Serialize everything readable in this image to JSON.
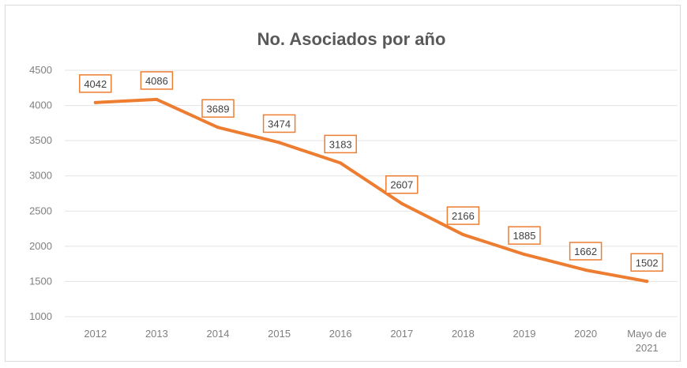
{
  "chart_data": {
    "type": "line",
    "title": "No. Asociados por año",
    "categories": [
      "2012",
      "2013",
      "2014",
      "2015",
      "2016",
      "2017",
      "2018",
      "2019",
      "2020",
      "Mayo de 2021"
    ],
    "category_lines": [
      [
        "2012"
      ],
      [
        "2013"
      ],
      [
        "2014"
      ],
      [
        "2015"
      ],
      [
        "2016"
      ],
      [
        "2017"
      ],
      [
        "2018"
      ],
      [
        "2019"
      ],
      [
        "2020"
      ],
      [
        "Mayo de",
        "2021"
      ]
    ],
    "series": [
      {
        "values": [
          4042,
          4086,
          3689,
          3474,
          3183,
          2607,
          2166,
          1885,
          1662,
          1502
        ],
        "data_labels": [
          "4042",
          "4086",
          "3689",
          "3474",
          "3183",
          "2607",
          "2166",
          "1885",
          "1662",
          "1502"
        ],
        "color": "#ed7d31"
      }
    ],
    "ylim": [
      1000,
      4500
    ],
    "yticks": [
      "1000",
      "1500",
      "2000",
      "2500",
      "3000",
      "3500",
      "4000",
      "4500"
    ],
    "grid": true,
    "legend": "none"
  }
}
